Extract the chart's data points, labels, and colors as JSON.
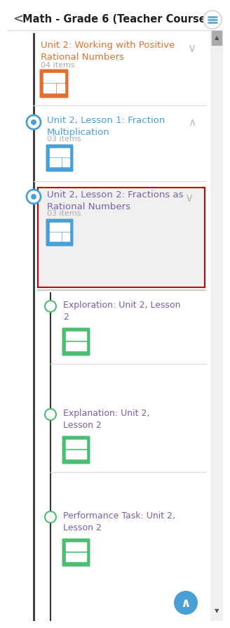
{
  "bg_color": "#ffffff",
  "header_text": "Math - Grade 6 (Teacher Course)",
  "unit2_title": "Unit 2: Working with Positive\nRational Numbers",
  "unit2_title_color": "#e07030",
  "unit2_items": "04 items",
  "lesson1_title": "Unit 2, Lesson 1: Fraction\nMultiplication",
  "lesson1_title_color": "#4a9fd4",
  "lesson1_items": "03 items",
  "lesson2_title": "Unit 2, Lesson 2: Fractions as\nRational Numbers",
  "lesson2_title_color": "#7b5ea7",
  "lesson2_items": "03 items",
  "lesson2_selected_bg": "#f0f0f0",
  "lesson2_border_color": "#cc0000",
  "sub1_title": "Exploration: Unit 2, Lesson\n2",
  "sub1_color": "#7b5ea7",
  "sub2_title": "Explanation: Unit 2,\nLesson 2",
  "sub2_color": "#7b5ea7",
  "sub3_title": "Performance Task: Unit 2,\nLesson 2",
  "sub3_color": "#7b5ea7",
  "timeline_color": "#333333",
  "circle_outer_color": "#4a9fd4",
  "sub_circle_color": "#4dbd74",
  "items_color": "#aaaaaa",
  "icon_orange_main": "#e07030",
  "icon_blue_main": "#4a9fd4",
  "icon_green_main": "#4dbd74",
  "chevron_color": "#bbbbbb",
  "separator_color": "#dddddd",
  "fab_color": "#4a9fd4"
}
